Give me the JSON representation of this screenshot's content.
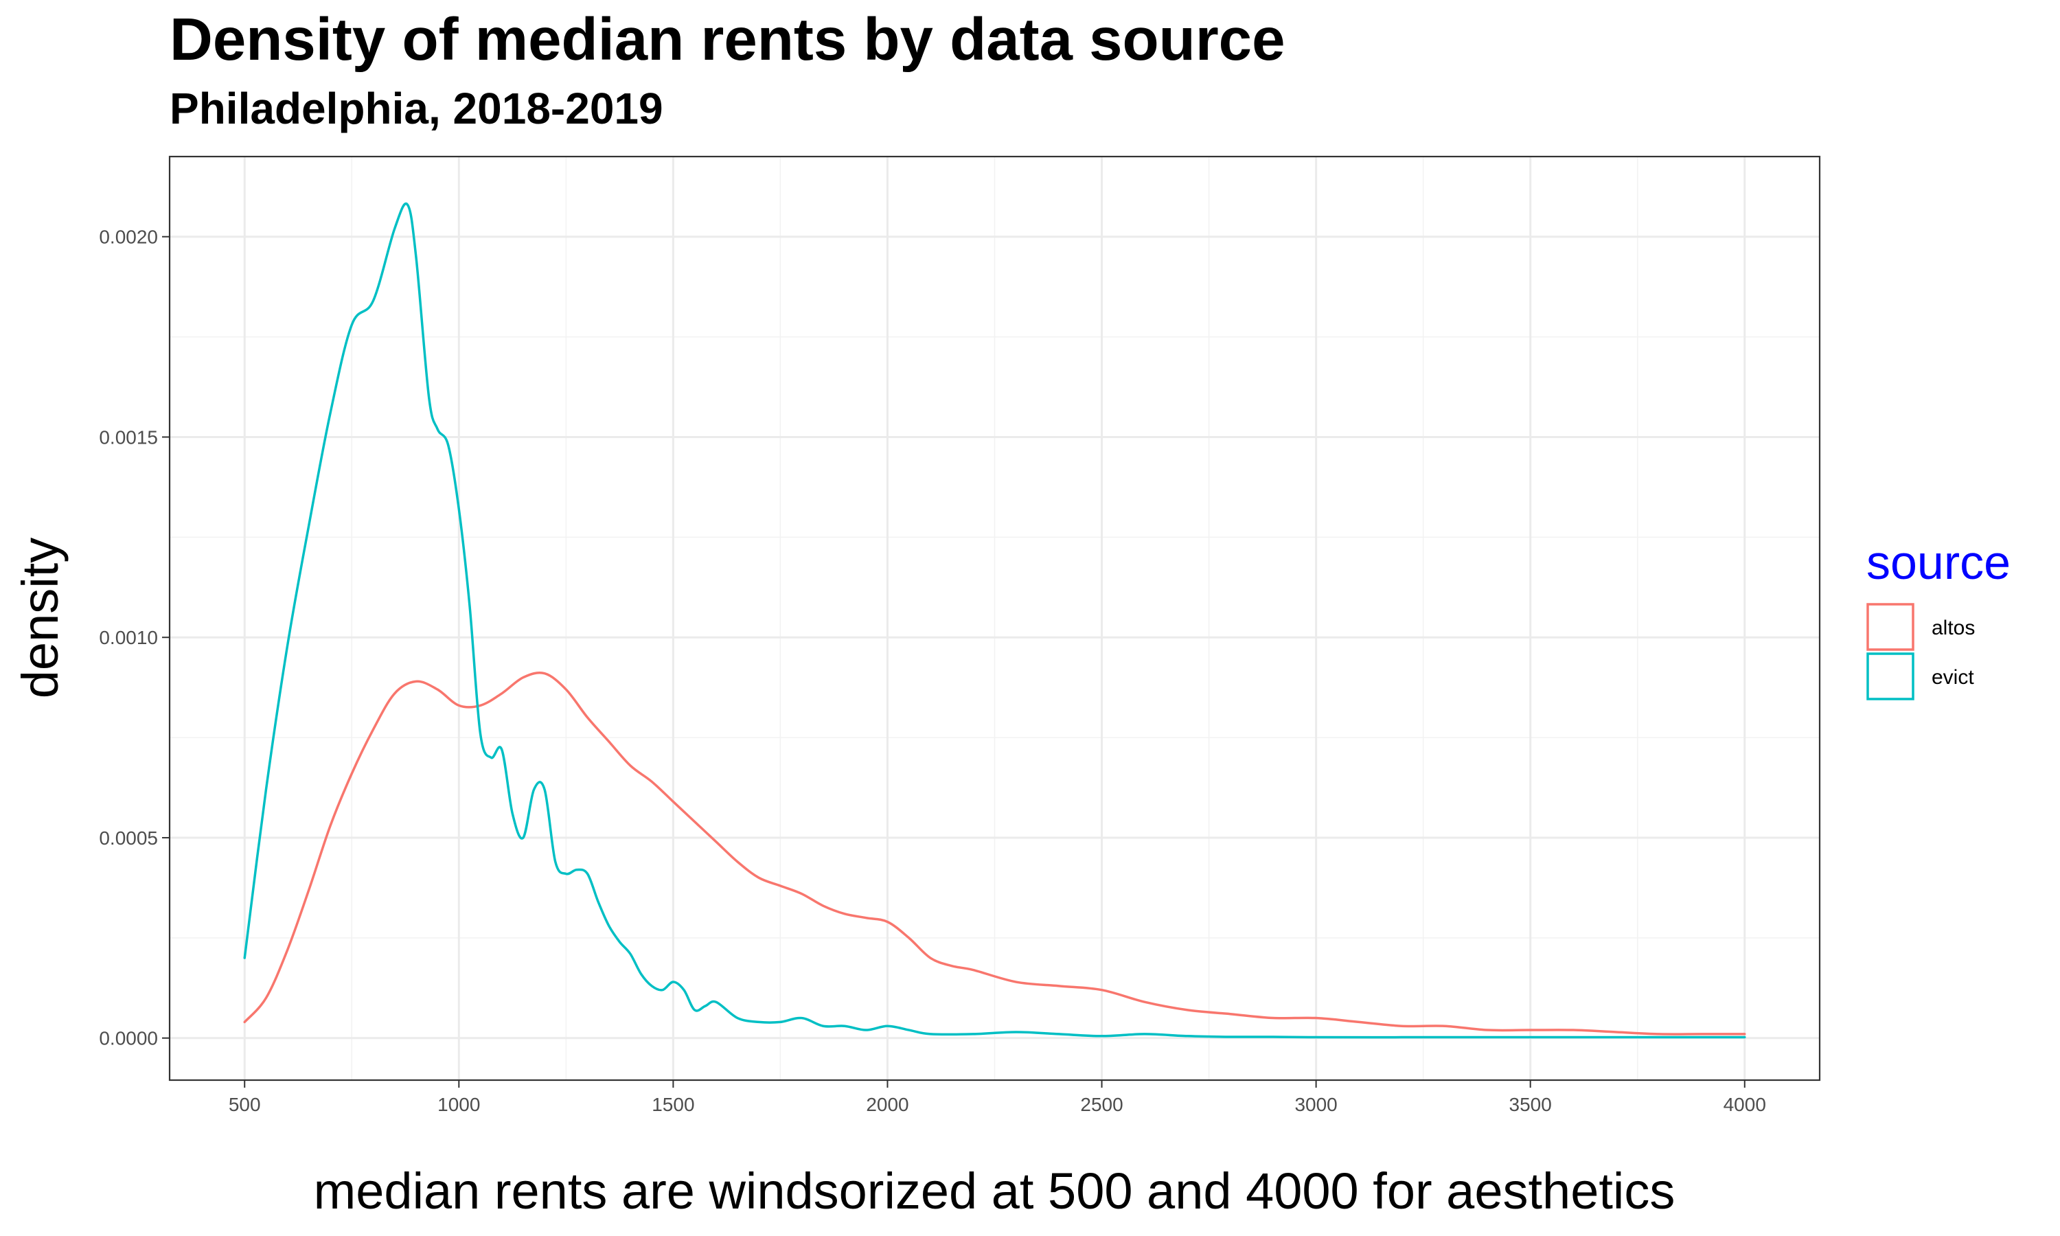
{
  "chart_data": {
    "type": "line",
    "title": "Density of median rents by data source",
    "subtitle": "Philadelphia, 2018-2019",
    "xlabel": "median rents are windsorized at 500 and 4000 for aesthetics",
    "ylabel": "density",
    "xlim": [
      325,
      4175
    ],
    "ylim": [
      -0.000105,
      0.0022
    ],
    "x_ticks": [
      500,
      1000,
      1500,
      2000,
      2500,
      3000,
      3500,
      4000
    ],
    "x_tick_labels": [
      "500",
      "1000",
      "1500",
      "2000",
      "2500",
      "3000",
      "3500",
      "4000"
    ],
    "y_ticks": [
      0,
      0.0005,
      0.001,
      0.0015,
      0.002
    ],
    "y_tick_labels": [
      "0.0000",
      "0.0005",
      "0.0010",
      "0.0015",
      "0.0020"
    ],
    "grid": true,
    "legend": {
      "title": "source",
      "title_color": "#0000ff",
      "placement": "right"
    },
    "series": [
      {
        "name": "altos",
        "color": "#f8766d",
        "x": [
          500,
          550,
          600,
          650,
          700,
          750,
          800,
          850,
          900,
          950,
          1000,
          1050,
          1100,
          1150,
          1200,
          1250,
          1300,
          1350,
          1400,
          1450,
          1500,
          1550,
          1600,
          1650,
          1700,
          1750,
          1800,
          1850,
          1900,
          1950,
          2000,
          2050,
          2100,
          2150,
          2200,
          2300,
          2400,
          2500,
          2600,
          2700,
          2800,
          2900,
          3000,
          3100,
          3200,
          3300,
          3400,
          3500,
          3600,
          3700,
          3800,
          3900,
          4000
        ],
        "y": [
          4e-05,
          0.0001,
          0.00022,
          0.00037,
          0.00053,
          0.00066,
          0.00077,
          0.00086,
          0.00089,
          0.00087,
          0.00083,
          0.00083,
          0.00086,
          0.0009,
          0.00091,
          0.00087,
          0.0008,
          0.00074,
          0.00068,
          0.00064,
          0.00059,
          0.00054,
          0.00049,
          0.00044,
          0.0004,
          0.00038,
          0.00036,
          0.00033,
          0.00031,
          0.0003,
          0.00029,
          0.00025,
          0.0002,
          0.00018,
          0.00017,
          0.00014,
          0.00013,
          0.00012,
          9e-05,
          7e-05,
          6e-05,
          5e-05,
          5e-05,
          4e-05,
          3e-05,
          3e-05,
          2e-05,
          2e-05,
          2e-05,
          1.5e-05,
          1e-05,
          1e-05,
          1e-05
        ]
      },
      {
        "name": "evict",
        "color": "#00bfc4",
        "x": [
          500,
          550,
          600,
          650,
          700,
          750,
          800,
          850,
          880,
          900,
          930,
          950,
          975,
          1000,
          1025,
          1050,
          1075,
          1100,
          1125,
          1150,
          1175,
          1200,
          1225,
          1250,
          1275,
          1300,
          1325,
          1350,
          1375,
          1400,
          1425,
          1450,
          1475,
          1500,
          1525,
          1550,
          1575,
          1600,
          1650,
          1700,
          1750,
          1800,
          1850,
          1900,
          1950,
          2000,
          2050,
          2100,
          2200,
          2300,
          2400,
          2500,
          2600,
          2700,
          2800,
          2900,
          3000,
          3200,
          3400,
          3600,
          3800,
          4000
        ],
        "y": [
          0.0002,
          0.00062,
          0.00098,
          0.00128,
          0.00156,
          0.00178,
          0.00184,
          0.00202,
          0.00208,
          0.00195,
          0.0016,
          0.00152,
          0.00148,
          0.00132,
          0.00108,
          0.00076,
          0.0007,
          0.00072,
          0.00056,
          0.0005,
          0.00062,
          0.00062,
          0.00044,
          0.00041,
          0.00042,
          0.00041,
          0.00034,
          0.00028,
          0.00024,
          0.00021,
          0.00016,
          0.00013,
          0.00012,
          0.00014,
          0.00012,
          7e-05,
          8e-05,
          9e-05,
          5e-05,
          4e-05,
          4e-05,
          5e-05,
          3e-05,
          3e-05,
          2e-05,
          3e-05,
          2e-05,
          1e-05,
          1e-05,
          1.5e-05,
          1e-05,
          5e-06,
          1e-05,
          5e-06,
          3e-06,
          3e-06,
          2e-06,
          2e-06,
          2e-06,
          2e-06,
          2e-06,
          2e-06
        ]
      }
    ]
  }
}
